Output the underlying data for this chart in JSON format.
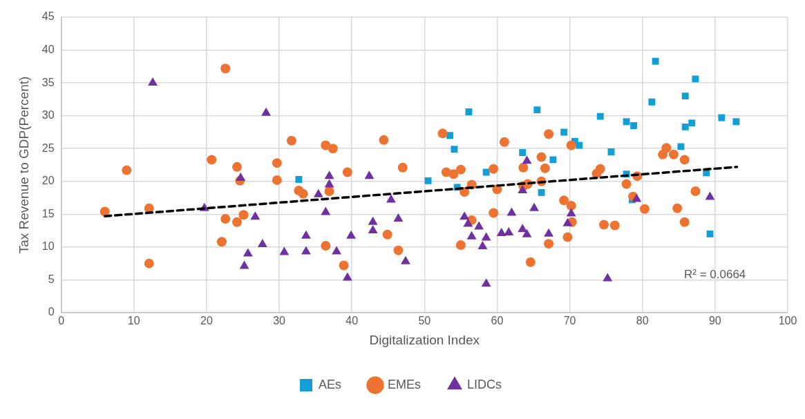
{
  "chart_data": {
    "type": "scatter",
    "xlabel": "Digitalization Index",
    "ylabel": "Tax Revenue to GDP(Percent)",
    "xlim": [
      0,
      100
    ],
    "xticks": [
      0,
      10,
      20,
      30,
      40,
      50,
      60,
      70,
      80,
      90,
      100
    ],
    "ylim": [
      0,
      45
    ],
    "yticks": [
      0,
      5,
      10,
      15,
      20,
      25,
      30,
      35,
      40,
      45
    ],
    "grid": true,
    "legend": "bottom",
    "annotations": [
      "R² = 0.0664"
    ],
    "series": [
      {
        "name": "AEs",
        "color": "#129fd6",
        "marker": "square",
        "x": [
          32.7,
          50.5,
          53.5,
          54.1,
          56.1,
          58.5,
          54.5,
          63.5,
          65.5,
          66.1,
          67.7,
          69.2,
          70.7,
          71.3,
          74.2,
          75.7,
          77.8,
          78.8,
          77.8,
          78.6,
          81.8,
          81.3,
          85.9,
          87.3,
          85.9,
          86.8,
          85.3,
          90.9,
          92.9,
          88.8,
          89.3
        ],
        "values": [
          20.3,
          20.1,
          27.0,
          24.9,
          30.6,
          21.4,
          19.1,
          24.4,
          30.9,
          18.3,
          23.3,
          27.5,
          26.1,
          25.5,
          29.9,
          24.5,
          29.1,
          28.5,
          21.1,
          17.2,
          38.3,
          32.1,
          33.0,
          35.6,
          28.3,
          28.9,
          25.3,
          29.7,
          29.1,
          21.3,
          12.0
        ]
      },
      {
        "name": "EMEs",
        "color": "#ed7333",
        "marker": "circle",
        "x": [
          22.6,
          9.0,
          6.0,
          12.1,
          12.1,
          20.7,
          24.2,
          24.6,
          31.7,
          29.7,
          29.7,
          32.7,
          33.3,
          22.6,
          24.2,
          25.1,
          22.1,
          36.4,
          37.4,
          44.4,
          39.4,
          47.0,
          36.9,
          44.9,
          36.4,
          46.4,
          38.9,
          52.5,
          53.0,
          54.0,
          55.0,
          56.5,
          55.5,
          59.5,
          61.0,
          60.0,
          59.5,
          56.5,
          55.0,
          63.6,
          63.6,
          64.2,
          64.6,
          66.1,
          66.6,
          66.1,
          67.1,
          70.2,
          67.1,
          69.2,
          70.2,
          70.3,
          69.7,
          73.7,
          74.2,
          74.7,
          76.2,
          77.8,
          79.3,
          78.7,
          80.3,
          82.8,
          83.3,
          84.3,
          85.8,
          87.3,
          84.8,
          85.8
        ],
        "values": [
          37.2,
          21.7,
          15.4,
          15.9,
          7.5,
          23.3,
          22.2,
          20.1,
          26.2,
          22.8,
          20.2,
          18.6,
          18.1,
          14.3,
          13.8,
          14.9,
          10.8,
          25.5,
          25.0,
          26.3,
          21.4,
          22.1,
          18.5,
          11.9,
          10.2,
          9.5,
          7.2,
          27.3,
          21.4,
          21.1,
          21.8,
          19.5,
          18.4,
          21.9,
          26.0,
          18.8,
          15.2,
          14.1,
          10.3,
          22.1,
          19.3,
          19.6,
          7.7,
          23.7,
          22.0,
          20.0,
          27.2,
          25.5,
          10.5,
          17.1,
          16.3,
          13.8,
          11.5,
          21.2,
          21.9,
          13.4,
          13.3,
          19.6,
          20.8,
          17.7,
          15.8,
          24.1,
          25.1,
          24.1,
          23.3,
          18.5,
          15.9,
          13.8
        ]
      },
      {
        "name": "LIDCs",
        "color": "#7030a0",
        "marker": "triangle",
        "x": [
          12.6,
          28.2,
          19.7,
          24.7,
          26.7,
          27.7,
          25.7,
          25.2,
          30.7,
          33.7,
          33.7,
          36.9,
          36.9,
          35.4,
          36.4,
          42.4,
          45.4,
          42.9,
          42.9,
          46.4,
          39.9,
          37.9,
          47.4,
          39.4,
          55.5,
          56.0,
          57.5,
          56.5,
          58.5,
          58.0,
          58.5,
          60.6,
          61.6,
          62.0,
          63.5,
          64.1,
          65.1,
          64.1,
          63.5,
          67.1,
          70.2,
          69.7,
          75.2,
          79.2,
          89.3
        ],
        "values": [
          35.0,
          30.4,
          15.9,
          20.5,
          14.6,
          10.4,
          9.0,
          7.1,
          9.2,
          11.7,
          9.3,
          20.8,
          19.5,
          18.0,
          15.3,
          20.8,
          17.2,
          13.8,
          12.5,
          14.3,
          11.7,
          9.3,
          7.8,
          5.3,
          14.6,
          13.5,
          13.1,
          11.6,
          11.4,
          10.1,
          4.4,
          12.1,
          12.2,
          15.2,
          12.7,
          11.9,
          15.9,
          23.1,
          18.6,
          12.0,
          15.1,
          13.6,
          5.2,
          17.3,
          17.6
        ]
      },
      {
        "type": "line",
        "color": "#000000",
        "marker": "none",
        "line_style": "dashed",
        "x": [
          6,
          93
        ],
        "values": [
          14.7,
          22.2
        ]
      }
    ]
  }
}
